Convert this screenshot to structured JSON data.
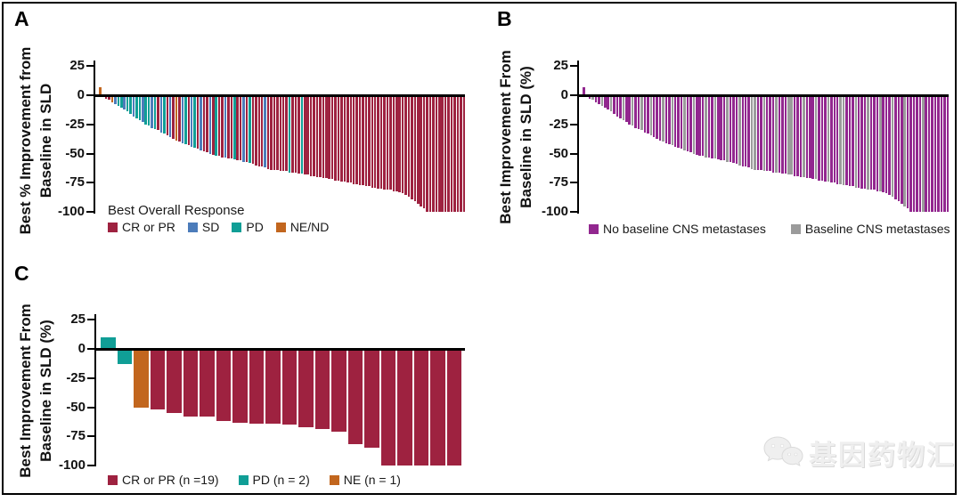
{
  "figure": {
    "panels": [
      {
        "label": "A",
        "y_axis_title_lines": [
          "Best % Improvement from",
          "Baseline in SLD"
        ],
        "y_ticks": [
          25,
          0,
          -25,
          -50,
          -75,
          -100
        ],
        "legend_title": "Best Overall Response",
        "legend": [
          {
            "key": "cr",
            "label": "CR or PR"
          },
          {
            "key": "sd",
            "label": "SD"
          },
          {
            "key": "pd",
            "label": "PD"
          },
          {
            "key": "ne",
            "label": "NE/ND"
          }
        ]
      },
      {
        "label": "B",
        "y_axis_title_lines": [
          "Best Improvement From",
          "Baseline in SLD (%)"
        ],
        "y_ticks": [
          25,
          0,
          -25,
          -50,
          -75,
          -100
        ],
        "legend_title": "",
        "legend": [
          {
            "key": "no_cns",
            "label": "No baseline CNS metastases"
          },
          {
            "key": "cns",
            "label": "Baseline CNS metastases"
          }
        ]
      },
      {
        "label": "C",
        "y_axis_title_lines": [
          "Best Improvement From",
          "Baseline in SLD (%)"
        ],
        "y_ticks": [
          25,
          0,
          -25,
          -50,
          -75,
          -100
        ],
        "legend_title": "",
        "legend": [
          {
            "key": "cr",
            "label": "CR or PR (n =19)"
          },
          {
            "key": "pd",
            "label": "PD (n = 2)"
          },
          {
            "key": "ne",
            "label": "NE (n = 1)"
          }
        ]
      }
    ],
    "watermark_text": "基因药物汇"
  },
  "colors": {
    "cr": "#9E2240",
    "sd": "#4C7CBA",
    "pd": "#109E96",
    "ne": "#C2661E",
    "no_cns": "#92278F",
    "cns": "#9B9B9B",
    "axis": "#000000",
    "background": "#FFFFFF"
  },
  "chart_data": [
    {
      "panel": "A",
      "type": "bar",
      "subtype": "waterfall",
      "title": "Panel A — Best overall response waterfall",
      "ylabel": "Best % Improvement from Baseline in SLD",
      "xlabel": "",
      "ylim": [
        -100,
        25
      ],
      "grid": false,
      "legend_position": "bottom",
      "legend": {
        "cr": "CR or PR",
        "sd": "SD",
        "pd": "PD",
        "ne": "NE/ND"
      },
      "values": [
        7,
        -1,
        -3,
        -4,
        -6,
        -8,
        -9,
        -11,
        -12,
        -14,
        -16,
        -18,
        -20,
        -21,
        -23,
        -25,
        -26,
        -28,
        -29,
        -30,
        -32,
        -33,
        -34,
        -36,
        -37,
        -39,
        -40,
        -41,
        -42,
        -43,
        -44,
        -45,
        -46,
        -47,
        -48,
        -49,
        -50,
        -51,
        -52,
        -52,
        -53,
        -53,
        -54,
        -54,
        -55,
        -56,
        -56,
        -57,
        -57,
        -58,
        -59,
        -60,
        -61,
        -61,
        -62,
        -63,
        -64,
        -64,
        -64,
        -65,
        -65,
        -65,
        -66,
        -66,
        -66,
        -67,
        -67,
        -68,
        -68,
        -69,
        -69,
        -70,
        -70,
        -71,
        -71,
        -72,
        -72,
        -73,
        -73,
        -74,
        -74,
        -75,
        -75,
        -76,
        -76,
        -77,
        -77,
        -78,
        -78,
        -79,
        -79,
        -80,
        -80,
        -81,
        -81,
        -81,
        -82,
        -82,
        -83,
        -84,
        -85,
        -87,
        -89,
        -91,
        -93,
        -95,
        -97,
        -100,
        -100,
        -100,
        -100,
        -100,
        -100,
        -100,
        -100,
        -100,
        -100,
        -100,
        -100,
        -100
      ],
      "bar_colors": [
        "ne",
        "cr",
        "cr",
        "cr",
        "ne",
        "sd",
        "pd",
        "pd",
        "sd",
        "pd",
        "pd",
        "sd",
        "pd",
        "pd",
        "sd",
        "pd",
        "pd",
        "sd",
        "pd",
        "cr",
        "sd",
        "pd",
        "cr",
        "sd",
        "cr",
        "ne",
        "cr",
        "sd",
        "pd",
        "cr",
        "sd",
        "pd",
        "cr",
        "sd",
        "cr",
        "cr",
        "sd",
        "cr",
        "pd",
        "cr",
        "cr",
        "sd",
        "cr",
        "cr",
        "pd",
        "cr",
        "cr",
        "sd",
        "cr",
        "pd",
        "cr",
        "cr",
        "cr",
        "cr",
        "sd",
        "cr",
        "cr",
        "cr",
        "cr",
        "cr",
        "cr",
        "cr",
        "pd",
        "cr",
        "cr",
        "cr",
        "pd",
        "cr",
        "cr",
        "cr",
        "cr",
        "cr",
        "cr",
        "cr",
        "cr",
        "cr",
        "cr",
        "cr",
        "cr",
        "cr",
        "cr",
        "cr",
        "cr",
        "cr",
        "cr",
        "cr",
        "cr",
        "cr",
        "cr",
        "cr",
        "cr",
        "cr",
        "cr",
        "cr",
        "cr",
        "cr",
        "cr",
        "cr",
        "cr",
        "cr",
        "cr",
        "cr",
        "cr",
        "cr",
        "cr",
        "cr",
        "cr",
        "cr",
        "cr",
        "cr",
        "cr",
        "cr",
        "cr",
        "cr",
        "cr",
        "cr",
        "cr",
        "cr",
        "cr",
        "cr"
      ]
    },
    {
      "panel": "B",
      "type": "bar",
      "subtype": "waterfall",
      "title": "Panel B — Baseline CNS metastases waterfall (same patients as A)",
      "ylabel": "Best Improvement From Baseline in SLD (%)",
      "xlabel": "",
      "ylim": [
        -100,
        25
      ],
      "grid": false,
      "legend_position": "bottom",
      "legend": {
        "no_cns": "No baseline CNS metastases",
        "cns": "Baseline CNS metastases"
      },
      "values": [
        7,
        -1,
        -3,
        -4,
        -6,
        -8,
        -9,
        -11,
        -12,
        -14,
        -16,
        -18,
        -20,
        -21,
        -23,
        -25,
        -26,
        -28,
        -29,
        -30,
        -32,
        -33,
        -34,
        -36,
        -37,
        -39,
        -40,
        -41,
        -42,
        -43,
        -44,
        -45,
        -46,
        -47,
        -48,
        -49,
        -50,
        -51,
        -52,
        -52,
        -53,
        -53,
        -54,
        -54,
        -55,
        -56,
        -56,
        -57,
        -57,
        -58,
        -59,
        -60,
        -61,
        -61,
        -62,
        -63,
        -64,
        -64,
        -64,
        -65,
        -65,
        -65,
        -66,
        -66,
        -66,
        -67,
        -67,
        -68,
        -68,
        -69,
        -69,
        -70,
        -70,
        -71,
        -71,
        -72,
        -72,
        -73,
        -73,
        -74,
        -74,
        -75,
        -75,
        -76,
        -76,
        -77,
        -77,
        -78,
        -78,
        -79,
        -79,
        -80,
        -80,
        -81,
        -81,
        -81,
        -82,
        -82,
        -83,
        -84,
        -85,
        -87,
        -89,
        -91,
        -93,
        -95,
        -97,
        -100,
        -100,
        -100,
        -100,
        -100,
        -100,
        -100,
        -100,
        -100,
        -100,
        -100,
        -100,
        -100
      ],
      "bar_colors": [
        "no_cns",
        "no_cns",
        "no_cns",
        "cns",
        "no_cns",
        "no_cns",
        "cns",
        "no_cns",
        "no_cns",
        "cns",
        "no_cns",
        "no_cns",
        "no_cns",
        "cns",
        "no_cns",
        "no_cns",
        "cns",
        "no_cns",
        "no_cns",
        "cns",
        "no_cns",
        "no_cns",
        "cns",
        "no_cns",
        "no_cns",
        "no_cns",
        "cns",
        "no_cns",
        "no_cns",
        "cns",
        "no_cns",
        "no_cns",
        "no_cns",
        "cns",
        "no_cns",
        "no_cns",
        "cns",
        "no_cns",
        "no_cns",
        "no_cns",
        "cns",
        "no_cns",
        "no_cns",
        "cns",
        "no_cns",
        "no_cns",
        "no_cns",
        "cns",
        "no_cns",
        "no_cns",
        "no_cns",
        "cns",
        "no_cns",
        "no_cns",
        "no_cns",
        "cns",
        "cns",
        "no_cns",
        "no_cns",
        "cns",
        "no_cns",
        "no_cns",
        "no_cns",
        "cns",
        "no_cns",
        "no_cns",
        "no_cns",
        "cns",
        "cns",
        "no_cns",
        "no_cns",
        "no_cns",
        "cns",
        "no_cns",
        "no_cns",
        "no_cns",
        "cns",
        "no_cns",
        "no_cns",
        "no_cns",
        "cns",
        "no_cns",
        "no_cns",
        "no_cns",
        "cns",
        "cns",
        "no_cns",
        "no_cns",
        "no_cns",
        "cns",
        "no_cns",
        "no_cns",
        "no_cns",
        "cns",
        "no_cns",
        "no_cns",
        "no_cns",
        "cns",
        "no_cns",
        "no_cns",
        "no_cns",
        "cns",
        "no_cns",
        "no_cns",
        "no_cns",
        "cns",
        "no_cns",
        "no_cns",
        "no_cns",
        "no_cns",
        "no_cns",
        "cns",
        "no_cns",
        "no_cns",
        "no_cns",
        "no_cns",
        "no_cns",
        "no_cns",
        "no_cns",
        "no_cns"
      ]
    },
    {
      "panel": "C",
      "type": "bar",
      "subtype": "waterfall",
      "title": "Panel C — Best overall response waterfall (n = 22)",
      "ylabel": "Best Improvement From Baseline in SLD (%)",
      "xlabel": "",
      "ylim": [
        -100,
        25
      ],
      "grid": false,
      "legend_position": "bottom",
      "legend": {
        "cr": "CR or PR (n =19)",
        "pd": "PD (n = 2)",
        "ne": "NE (n = 1)"
      },
      "values": [
        10,
        -13,
        -50,
        -52,
        -55,
        -58,
        -58,
        -62,
        -63,
        -64,
        -64,
        -65,
        -67,
        -69,
        -71,
        -82,
        -85,
        -100,
        -100,
        -100,
        -100,
        -100
      ],
      "bar_colors": [
        "pd",
        "pd",
        "ne",
        "cr",
        "cr",
        "cr",
        "cr",
        "cr",
        "cr",
        "cr",
        "cr",
        "cr",
        "cr",
        "cr",
        "cr",
        "cr",
        "cr",
        "cr",
        "cr",
        "cr",
        "cr",
        "cr"
      ]
    }
  ]
}
